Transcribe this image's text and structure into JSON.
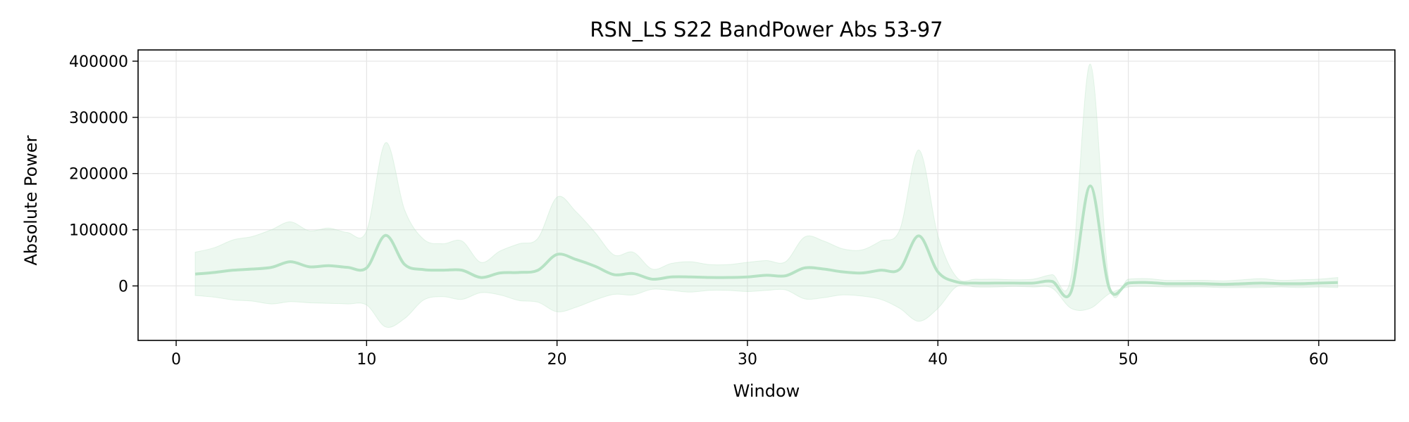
{
  "chart_data": {
    "type": "line",
    "title": "RSN_LS S22 BandPower Abs 53-97",
    "xlabel": "Window",
    "ylabel": "Absolute Power",
    "xlim": [
      -2,
      64
    ],
    "ylim": [
      -97000,
      420000
    ],
    "xticks": [
      0,
      10,
      20,
      30,
      40,
      50,
      60
    ],
    "yticks": [
      0,
      100000,
      200000,
      300000,
      400000
    ],
    "grid": true,
    "legend": "none",
    "color": "#b6e2c4",
    "series": [
      {
        "x": [
          1,
          2,
          3,
          4,
          5,
          6,
          7,
          8,
          9,
          10,
          11,
          12,
          13,
          14,
          15,
          16,
          17,
          18,
          19,
          20,
          21,
          22,
          23,
          24,
          25,
          26,
          27,
          28,
          29,
          30,
          31,
          32,
          33,
          34,
          35,
          36,
          37,
          38,
          39,
          40,
          41,
          42,
          43,
          44,
          45,
          46,
          47,
          48,
          49,
          50,
          51,
          52,
          53,
          54,
          55,
          56,
          57,
          58,
          59,
          60,
          61
        ],
        "y": [
          21000,
          24000,
          28000,
          30000,
          33000,
          43000,
          34000,
          36000,
          33000,
          32000,
          90000,
          38000,
          29000,
          28000,
          28000,
          15000,
          23000,
          24000,
          28000,
          56000,
          47000,
          35000,
          20000,
          22000,
          12000,
          16000,
          16000,
          15000,
          15000,
          16000,
          19000,
          18000,
          32000,
          30000,
          25000,
          23000,
          28000,
          30000,
          89000,
          25000,
          7000,
          5000,
          5000,
          5000,
          5000,
          8000,
          -10000,
          178000,
          -4000,
          5000,
          6000,
          4000,
          4000,
          4000,
          3000,
          4000,
          5000,
          4000,
          4000,
          5000,
          6000
        ],
        "upper": [
          60000,
          68000,
          82000,
          88000,
          100000,
          114000,
          98000,
          103000,
          95000,
          98000,
          255000,
          135000,
          83000,
          75000,
          80000,
          42000,
          62000,
          75000,
          85000,
          158000,
          132000,
          95000,
          55000,
          60000,
          30000,
          40000,
          43000,
          38000,
          38000,
          42000,
          45000,
          43000,
          87000,
          80000,
          66000,
          64000,
          80000,
          100000,
          242000,
          90000,
          15000,
          12000,
          12000,
          11000,
          12000,
          20000,
          18000,
          395000,
          6000,
          12000,
          13000,
          10000,
          10000,
          10000,
          9000,
          11000,
          13000,
          10000,
          11000,
          12000,
          15000
        ],
        "lower": [
          -17000,
          -20000,
          -25000,
          -27000,
          -32000,
          -28000,
          -30000,
          -31000,
          -32000,
          -34000,
          -73000,
          -58000,
          -25000,
          -19000,
          -24000,
          -12000,
          -16000,
          -26000,
          -29000,
          -46000,
          -38000,
          -25000,
          -15000,
          -16000,
          -6000,
          -8000,
          -11000,
          -8000,
          -8000,
          -10000,
          -8000,
          -7000,
          -23000,
          -21000,
          -16000,
          -18000,
          -24000,
          -40000,
          -63000,
          -40000,
          -1000,
          -2000,
          -2000,
          -1000,
          -2000,
          -4000,
          -40000,
          -40000,
          -14000,
          -2000,
          -1000,
          -2000,
          -2000,
          -2000,
          -3000,
          -3000,
          -3000,
          -2000,
          -3000,
          -2000,
          -3000
        ]
      }
    ]
  }
}
